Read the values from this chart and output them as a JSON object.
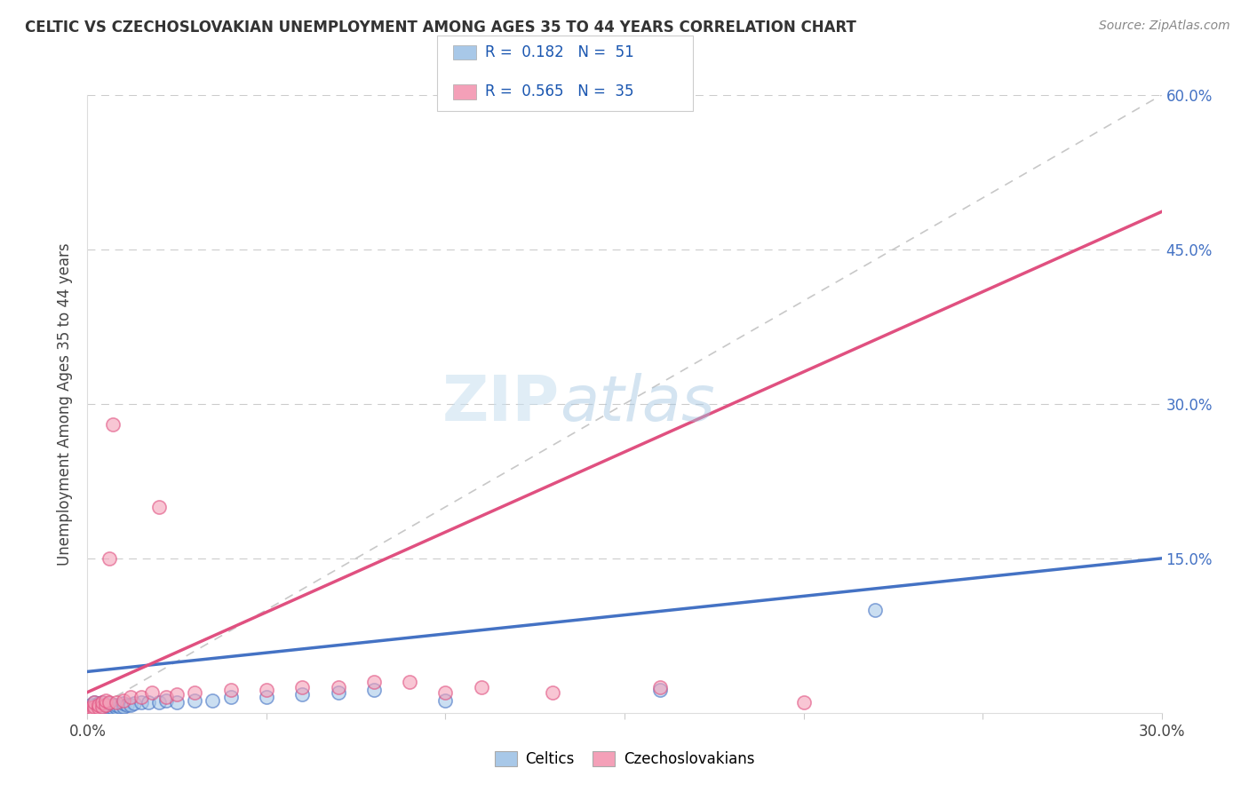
{
  "title": "CELTIC VS CZECHOSLOVAKIAN UNEMPLOYMENT AMONG AGES 35 TO 44 YEARS CORRELATION CHART",
  "source": "Source: ZipAtlas.com",
  "ylabel": "Unemployment Among Ages 35 to 44 years",
  "xlim": [
    0.0,
    0.3
  ],
  "ylim": [
    0.0,
    0.6
  ],
  "celtic_R": 0.182,
  "celtic_N": 51,
  "czech_R": 0.565,
  "czech_N": 35,
  "celtic_color": "#a8c8e8",
  "czech_color": "#f4a0b8",
  "celtic_line_color": "#4472c4",
  "czech_line_color": "#e05080",
  "diag_line_color": "#c8c8c8",
  "watermark_zip": "ZIP",
  "watermark_atlas": "atlas",
  "background_color": "#ffffff",
  "celtic_x": [
    0.0,
    0.001,
    0.001,
    0.001,
    0.001,
    0.002,
    0.002,
    0.002,
    0.002,
    0.002,
    0.002,
    0.003,
    0.003,
    0.003,
    0.003,
    0.003,
    0.004,
    0.004,
    0.004,
    0.004,
    0.005,
    0.005,
    0.005,
    0.006,
    0.006,
    0.006,
    0.007,
    0.007,
    0.008,
    0.008,
    0.009,
    0.01,
    0.01,
    0.011,
    0.012,
    0.013,
    0.015,
    0.017,
    0.02,
    0.022,
    0.025,
    0.03,
    0.035,
    0.04,
    0.05,
    0.06,
    0.07,
    0.08,
    0.1,
    0.16,
    0.22
  ],
  "celtic_y": [
    0.002,
    0.002,
    0.003,
    0.005,
    0.008,
    0.002,
    0.003,
    0.004,
    0.006,
    0.008,
    0.01,
    0.002,
    0.003,
    0.005,
    0.007,
    0.009,
    0.003,
    0.005,
    0.007,
    0.01,
    0.003,
    0.005,
    0.008,
    0.004,
    0.006,
    0.009,
    0.005,
    0.008,
    0.005,
    0.008,
    0.006,
    0.006,
    0.009,
    0.008,
    0.008,
    0.009,
    0.01,
    0.01,
    0.01,
    0.012,
    0.01,
    0.012,
    0.012,
    0.015,
    0.015,
    0.018,
    0.02,
    0.022,
    0.012,
    0.022,
    0.1
  ],
  "czech_x": [
    0.0,
    0.001,
    0.001,
    0.002,
    0.002,
    0.002,
    0.003,
    0.003,
    0.004,
    0.004,
    0.005,
    0.005,
    0.006,
    0.006,
    0.007,
    0.008,
    0.01,
    0.012,
    0.015,
    0.018,
    0.02,
    0.022,
    0.025,
    0.03,
    0.04,
    0.05,
    0.06,
    0.07,
    0.08,
    0.09,
    0.1,
    0.11,
    0.13,
    0.16,
    0.2
  ],
  "czech_y": [
    0.002,
    0.003,
    0.005,
    0.003,
    0.006,
    0.01,
    0.005,
    0.008,
    0.006,
    0.01,
    0.008,
    0.012,
    0.01,
    0.15,
    0.28,
    0.01,
    0.012,
    0.015,
    0.015,
    0.02,
    0.2,
    0.015,
    0.018,
    0.02,
    0.022,
    0.022,
    0.025,
    0.025,
    0.03,
    0.03,
    0.02,
    0.025,
    0.02,
    0.025,
    0.01
  ]
}
